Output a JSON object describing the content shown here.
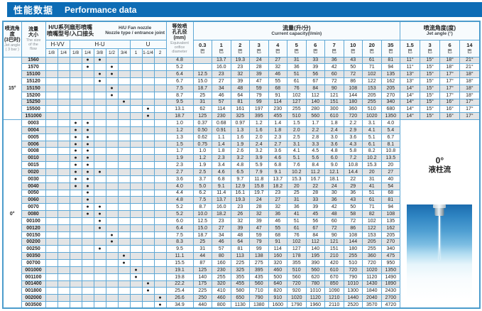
{
  "title": {
    "zh": "性能数据",
    "en": "Performance data"
  },
  "colors": {
    "title_bar": "#0d6cb5",
    "grid_border": "#5fa8d5",
    "outer_border": "#4c9ccc",
    "row_shade": "#e3e4e5",
    "header_bg": "#f7fbfd"
  },
  "table": {
    "headers": {
      "jet_angle_col": {
        "zh": "喷流角度\n(3巴时)",
        "en": "Jet angle\n( 3 bar )"
      },
      "flow_col": {
        "zh": "流量\n大小",
        "en": "The size\nof the\nflow"
      },
      "nozzle_group": {
        "zh": "H/U系列扇形喷嘴\n喷嘴型号/入口接头",
        "en": "H/U  Fan nozzle\nNozzle type / entrance joint"
      },
      "orifice_col": {
        "zh": "等效喷\n孔孔径\n(mm)",
        "en": "Equivalent\norifice\ndiameter"
      },
      "capacity_group": {
        "zh": "流量(升/分)",
        "en": "Current capacity(l/min)"
      },
      "angle_group": {
        "zh": "喷流角度(度)",
        "en": "Jet angle (°)"
      },
      "subgroups": [
        {
          "label": "H-VV",
          "sizes": [
            "1/8",
            "1/4"
          ]
        },
        {
          "label": "H-U",
          "sizes": [
            "1/8",
            "1/4",
            "3/8",
            "1/2",
            "3/4"
          ]
        },
        {
          "label": "U",
          "sizes": [
            "1",
            "1-1/4",
            "2"
          ]
        }
      ],
      "pressures": [
        "0.3",
        "1",
        "2",
        "3",
        "4",
        "5",
        "6",
        "7",
        "10",
        "20",
        "35"
      ],
      "bar_unit": "巴",
      "angle_pressures": [
        "1.5",
        "3",
        "6",
        "14"
      ]
    },
    "sections": [
      {
        "angle": "15°",
        "rows": [
          {
            "code": "1560",
            "dots": [
              3,
              4
            ],
            "orifice": "4.8",
            "flows": [
              "",
              "13.7",
              "19.3",
              "24",
              "27",
              "31",
              "33",
              "36",
              "43",
              "61",
              "81"
            ],
            "angles": [
              "11°",
              "15°",
              "18°",
              "21°"
            ]
          },
          {
            "code": "1570",
            "dots": [
              3,
              5
            ],
            "orifice": "5.2",
            "flows": [
              "",
              "16.0",
              "23",
              "28",
              "32",
              "36",
              "39",
              "42",
              "50",
              "71",
              "94"
            ],
            "angles": [
              "11°",
              "15°",
              "18°",
              "21°"
            ]
          },
          {
            "code": "15100",
            "dots": [
              4,
              5
            ],
            "orifice": "6.4",
            "flows": [
              "12.5",
              "23",
              "32",
              "39",
              "46",
              "51",
              "56",
              "60",
              "72",
              "102",
              "135"
            ],
            "angles": [
              "13°",
              "15°",
              "17°",
              "18°"
            ]
          },
          {
            "code": "15120",
            "dots": [
              4
            ],
            "orifice": "6.7",
            "flows": [
              "15.0",
              "27",
              "39",
              "47",
              "55",
              "61",
              "67",
              "72",
              "86",
              "122",
              "162"
            ],
            "angles": [
              "13°",
              "15°",
              "17°",
              "18°"
            ]
          },
          {
            "code": "15150",
            "dots": [
              5
            ],
            "orifice": "7.5",
            "flows": [
              "18.7",
              "34",
              "48",
              "59",
              "68",
              "76",
              "84",
              "90",
              "108",
              "153",
              "205"
            ],
            "angles": [
              "14°",
              "15°",
              "17°",
              "18°"
            ]
          },
          {
            "code": "15200",
            "dots": [
              5
            ],
            "orifice": "8.7",
            "flows": [
              "25",
              "46",
              "64",
              "79",
              "91",
              "102",
              "112",
              "121",
              "144",
              "205",
              "270"
            ],
            "angles": [
              "14°",
              "15°",
              "17°",
              "18°"
            ]
          },
          {
            "code": "15250",
            "dots": [
              6
            ],
            "orifice": "9.5",
            "flows": [
              "31",
              "57",
              "81",
              "99",
              "114",
              "127",
              "140",
              "151",
              "180",
              "255",
              "340"
            ],
            "angles": [
              "14°",
              "15°",
              "16°",
              "17°"
            ]
          },
          {
            "code": "15500",
            "dots": [
              8
            ],
            "orifice": "13.1",
            "flows": [
              "62",
              "114",
              "161",
              "197",
              "230",
              "255",
              "280",
              "300",
              "360",
              "510",
              "680"
            ],
            "angles": [
              "14°",
              "15°",
              "16°",
              "17°"
            ]
          },
          {
            "code": "151000",
            "dots": [
              8
            ],
            "orifice": "18.7",
            "flows": [
              "125",
              "230",
              "325",
              "395",
              "455",
              "510",
              "560",
              "610",
              "720",
              "1020",
              "1350"
            ],
            "angles": [
              "14°",
              "15°",
              "16°",
              "17°"
            ]
          }
        ]
      },
      {
        "angle": "0°",
        "note": {
          "angle": "0°",
          "label": "液柱流"
        },
        "rows": [
          {
            "code": "0003",
            "dots": [
              2,
              3
            ],
            "orifice": "1.0",
            "flows": [
              "0.37",
              "0.68",
              "0.97",
              "1.2",
              "1.4",
              "1.5",
              "1.7",
              "1.8",
              "2.2",
              "3.1",
              "4.0"
            ]
          },
          {
            "code": "0004",
            "dots": [
              2,
              3
            ],
            "orifice": "1.2",
            "flows": [
              "0.50",
              "0.91",
              "1.3",
              "1.6",
              "1.8",
              "2.0",
              "2.2",
              "2.4",
              "2.9",
              "4.1",
              "5.4"
            ]
          },
          {
            "code": "0005",
            "dots": [
              2,
              3
            ],
            "orifice": "1.3",
            "flows": [
              "0.62",
              "1.1",
              "1.6",
              "2.0",
              "2.3",
              "2.5",
              "2.8",
              "3.0",
              "3.6",
              "5.1",
              "6.7"
            ]
          },
          {
            "code": "0006",
            "dots": [
              2,
              3
            ],
            "orifice": "1.5",
            "flows": [
              "0.75",
              "1.4",
              "1.9",
              "2.4",
              "2.7",
              "3.1",
              "3.3",
              "3.6",
              "4.3",
              "6.1",
              "8.1"
            ]
          },
          {
            "code": "0008",
            "dots": [
              2,
              3
            ],
            "orifice": "1.7",
            "flows": [
              "1.0",
              "1.8",
              "2.6",
              "3.2",
              "3.6",
              "4.1",
              "4.5",
              "4.8",
              "5.8",
              "8.2",
              "10.8"
            ]
          },
          {
            "code": "0010",
            "dots": [
              2,
              3
            ],
            "orifice": "1.9",
            "flows": [
              "1.2",
              "2.3",
              "3.2",
              "3.9",
              "4.6",
              "5.1",
              "5.6",
              "6.0",
              "7.2",
              "10.2",
              "13.5"
            ]
          },
          {
            "code": "0015",
            "dots": [
              2,
              3
            ],
            "orifice": "2.3",
            "flows": [
              "1.9",
              "3.4",
              "4.8",
              "5.9",
              "6.8",
              "7.6",
              "8.4",
              "9.0",
              "10.8",
              "15.3",
              "20"
            ]
          },
          {
            "code": "0020",
            "dots": [
              2,
              3,
              4
            ],
            "orifice": "2.7",
            "flows": [
              "2.5",
              "4.6",
              "6.5",
              "7.9",
              "9.1",
              "10.2",
              "11.2",
              "12.1",
              "14.4",
              "20",
              "27"
            ]
          },
          {
            "code": "0030",
            "dots": [
              2,
              3
            ],
            "orifice": "3.6",
            "flows": [
              "3.7",
              "6.8",
              "9.7",
              "11.8",
              "13.7",
              "15.3",
              "16.7",
              "18.1",
              "22",
              "31",
              "40"
            ]
          },
          {
            "code": "0040",
            "dots": [
              2,
              3
            ],
            "orifice": "4.0",
            "flows": [
              "5.0",
              "9.1",
              "12.9",
              "15.8",
              "18.2",
              "20",
              "22",
              "24",
              "29",
              "41",
              "54"
            ]
          },
          {
            "code": "0050",
            "dots": [
              3
            ],
            "orifice": "4.4",
            "flows": [
              "6.2",
              "11.4",
              "16.1",
              "19.7",
              "23",
              "25",
              "28",
              "30",
              "36",
              "51",
              "68"
            ]
          },
          {
            "code": "0060",
            "dots": [
              3
            ],
            "orifice": "4.8",
            "flows": [
              "7.5",
              "13.7",
              "19.3",
              "24",
              "27",
              "31",
              "33",
              "36",
              "43",
              "61",
              "81"
            ]
          },
          {
            "code": "0070",
            "dots": [
              3,
              4
            ],
            "orifice": "5.2",
            "flows": [
              "8.7",
              "16.0",
              "23",
              "28",
              "32",
              "36",
              "39",
              "42",
              "50",
              "71",
              "94"
            ]
          },
          {
            "code": "0080",
            "dots": [
              3,
              4
            ],
            "orifice": "5.2",
            "flows": [
              "10.0",
              "18.2",
              "26",
              "32",
              "36",
              "41",
              "45",
              "48",
              "58",
              "82",
              "108"
            ]
          },
          {
            "code": "00100",
            "dots": [
              4
            ],
            "orifice": "6.0",
            "flows": [
              "12.5",
              "23",
              "32",
              "39",
              "46",
              "51",
              "56",
              "60",
              "72",
              "102",
              "135"
            ]
          },
          {
            "code": "00120",
            "dots": [
              4
            ],
            "orifice": "6.4",
            "flows": [
              "15.0",
              "27",
              "39",
              "47",
              "55",
              "61",
              "67",
              "72",
              "86",
              "122",
              "162"
            ]
          },
          {
            "code": "00150",
            "dots": [
              5
            ],
            "orifice": "7.5",
            "flows": [
              "18.7",
              "34",
              "48",
              "59",
              "68",
              "76",
              "84",
              "90",
              "108",
              "153",
              "205"
            ]
          },
          {
            "code": "00200",
            "dots": [
              5
            ],
            "orifice": "8.3",
            "flows": [
              "25",
              "46",
              "64",
              "79",
              "91",
              "102",
              "112",
              "121",
              "144",
              "205",
              "270"
            ]
          },
          {
            "code": "00250",
            "dots": [
              4
            ],
            "orifice": "9.5",
            "flows": [
              "31",
              "57",
              "81",
              "99",
              "114",
              "127",
              "140",
              "151",
              "180",
              "255",
              "340"
            ]
          },
          {
            "code": "00350",
            "dots": [
              6
            ],
            "orifice": "11.1",
            "flows": [
              "44",
              "80",
              "113",
              "138",
              "160",
              "178",
              "195",
              "210",
              "255",
              "360",
              "475"
            ]
          },
          {
            "code": "00700",
            "dots": [
              6
            ],
            "orifice": "15.5",
            "flows": [
              "87",
              "160",
              "225",
              "275",
              "320",
              "355",
              "390",
              "420",
              "510",
              "720",
              "950"
            ]
          },
          {
            "code": "001000",
            "dots": [
              7
            ],
            "orifice": "19.1",
            "flows": [
              "125",
              "230",
              "325",
              "395",
              "460",
              "510",
              "560",
              "610",
              "720",
              "1020",
              "1350"
            ]
          },
          {
            "code": "001100",
            "dots": [
              7
            ],
            "orifice": "19.8",
            "flows": [
              "140",
              "255",
              "355",
              "435",
              "500",
              "560",
              "620",
              "670",
              "790",
              "1120",
              "1490"
            ]
          },
          {
            "code": "001400",
            "dots": [
              8
            ],
            "orifice": "22.2",
            "flows": [
              "175",
              "320",
              "455",
              "560",
              "640",
              "720",
              "780",
              "850",
              "1010",
              "1430",
              "1890"
            ]
          },
          {
            "code": "001800",
            "dots": [
              8
            ],
            "orifice": "25.4",
            "flows": [
              "225",
              "410",
              "580",
              "710",
              "820",
              "920",
              "1010",
              "1090",
              "1300",
              "1840",
              "2430"
            ]
          },
          {
            "code": "002000",
            "dots": [
              9
            ],
            "orifice": "26.6",
            "flows": [
              "250",
              "460",
              "650",
              "790",
              "910",
              "1020",
              "1120",
              "1210",
              "1440",
              "2040",
              "2700"
            ]
          },
          {
            "code": "003500",
            "dots": [
              9
            ],
            "orifice": "34.9",
            "flows": [
              "440",
              "800",
              "1130",
              "1380",
              "1600",
              "1790",
              "1960",
              "2110",
              "2520",
              "3570",
              "4720"
            ]
          }
        ]
      }
    ]
  }
}
